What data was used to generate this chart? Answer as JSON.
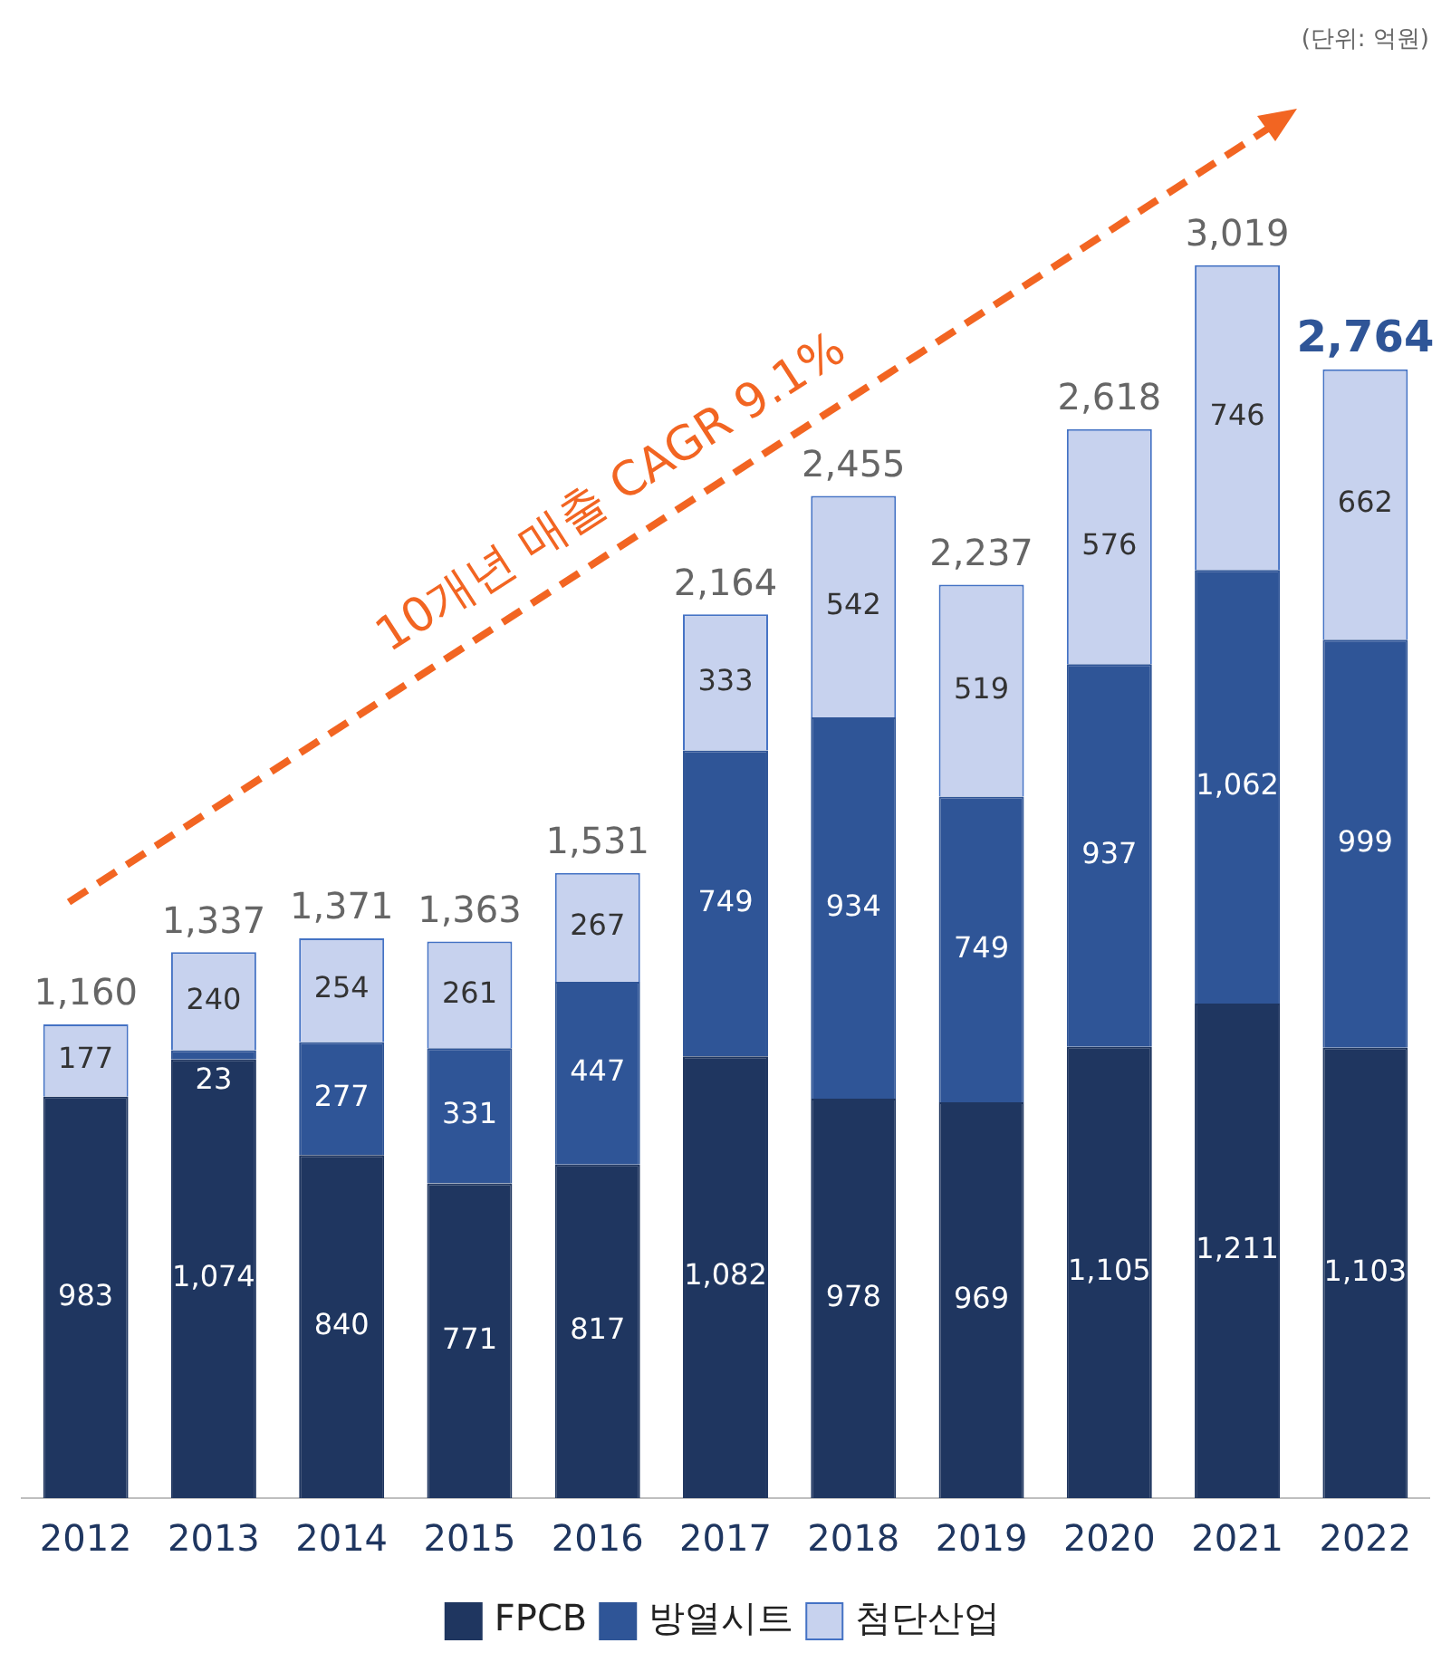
{
  "chart_data": {
    "type": "bar",
    "stacked": true,
    "categories": [
      "2012",
      "2013",
      "2014",
      "2015",
      "2016",
      "2017",
      "2018",
      "2019",
      "2020",
      "2021",
      "2022"
    ],
    "series": [
      {
        "name": "FPCB",
        "color": "#1f3660",
        "values": [
          983,
          1074,
          840,
          771,
          817,
          1082,
          978,
          969,
          1105,
          1211,
          1103
        ],
        "value_labels": [
          "983",
          "1,074",
          "840",
          "771",
          "817",
          "1,082",
          "978",
          "969",
          "1,105",
          "1,211",
          "1,103"
        ]
      },
      {
        "name": "방열시트",
        "color": "#2f5597",
        "values": [
          null,
          23,
          277,
          331,
          447,
          749,
          934,
          749,
          937,
          1062,
          999
        ],
        "value_labels": [
          null,
          "23",
          "277",
          "331",
          "447",
          "749",
          "934",
          "749",
          "937",
          "1,062",
          "999"
        ]
      },
      {
        "name": "첨단산업",
        "color": "#c7d2ee",
        "values": [
          177,
          240,
          254,
          261,
          267,
          333,
          542,
          519,
          576,
          746,
          662
        ],
        "value_labels": [
          "177",
          "240",
          "254",
          "261",
          "267",
          "333",
          "542",
          "519",
          "576",
          "746",
          "662"
        ]
      }
    ],
    "totals": [
      "1,160",
      "1,337",
      "1,371",
      "1,363",
      "1,531",
      "2,164",
      "2,455",
      "2,237",
      "2,618",
      "3,019",
      "2,764"
    ],
    "legend": "bottom",
    "grid": false,
    "annotations": [
      "(단위: 억원)",
      "10개년 매출 CAGR 9.1%"
    ]
  }
}
